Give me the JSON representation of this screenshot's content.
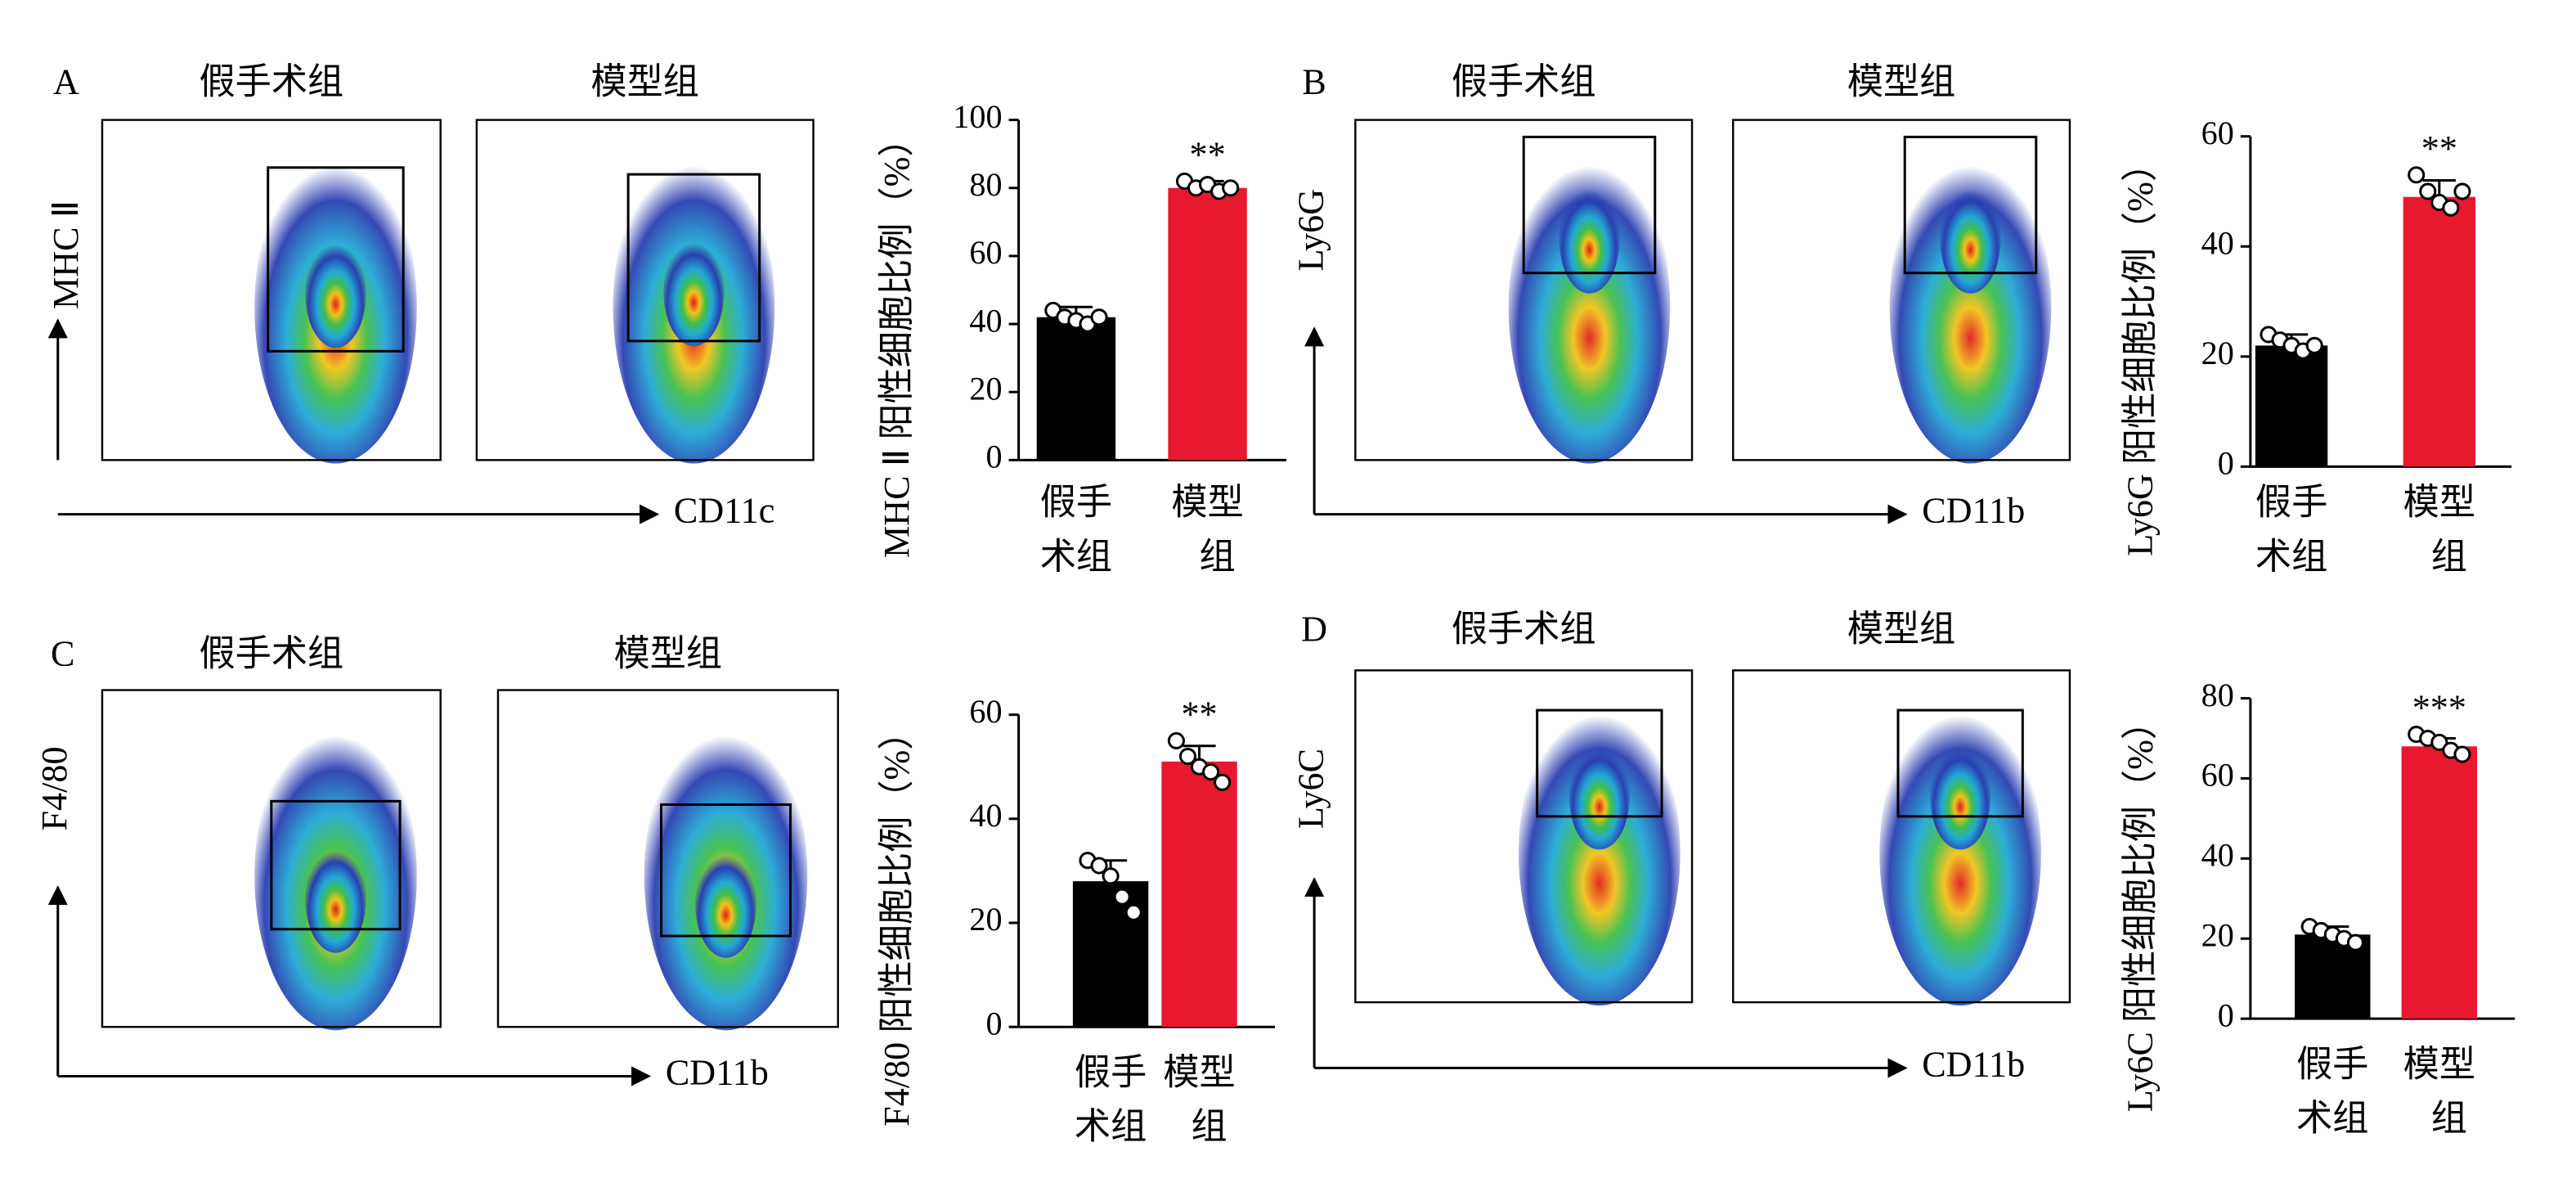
{
  "chart_data": [
    {
      "type": "bar",
      "panel": "A",
      "categories": [
        "假手术组",
        "模型组"
      ],
      "values": [
        42,
        80
      ],
      "errors": [
        3,
        2
      ],
      "points": [
        [
          44,
          42,
          41,
          40,
          42
        ],
        [
          82,
          80,
          81,
          79,
          80
        ]
      ],
      "colors": [
        "#000000",
        "#e8182f"
      ],
      "annotation": "**",
      "ylabel": "MHC Ⅱ 阳性细胞比例（%）",
      "flow_x_label": "CD11c",
      "flow_y_label": "MHC Ⅱ",
      "ylim": [
        0,
        100
      ],
      "yticks": [
        0,
        20,
        40,
        60,
        80,
        100
      ]
    },
    {
      "type": "bar",
      "panel": "B",
      "categories": [
        "假手术组",
        "模型组"
      ],
      "values": [
        22,
        49
      ],
      "errors": [
        2,
        3
      ],
      "points": [
        [
          24,
          23,
          22,
          21,
          22
        ],
        [
          53,
          50,
          48,
          47,
          50
        ]
      ],
      "colors": [
        "#000000",
        "#e8182f"
      ],
      "annotation": "**",
      "ylabel": "Ly6G 阳性细胞比例（%）",
      "flow_x_label": "CD11b",
      "flow_y_label": "Ly6G",
      "ylim": [
        0,
        60
      ],
      "yticks": [
        0,
        20,
        40,
        60
      ]
    },
    {
      "type": "bar",
      "panel": "C",
      "categories": [
        "假手术组",
        "模型组"
      ],
      "values": [
        28,
        51
      ],
      "errors": [
        4,
        3
      ],
      "points": [
        [
          32,
          31,
          29,
          25,
          22
        ],
        [
          55,
          52,
          50,
          49,
          47
        ]
      ],
      "colors": [
        "#000000",
        "#e8182f"
      ],
      "annotation": "**",
      "ylabel": "F4/80 阳性细胞比例（%）",
      "flow_x_label": "CD11b",
      "flow_y_label": "F4/80",
      "ylim": [
        0,
        60
      ],
      "yticks": [
        0,
        20,
        40,
        60
      ]
    },
    {
      "type": "bar",
      "panel": "D",
      "categories": [
        "假手术组",
        "模型组"
      ],
      "values": [
        21,
        68
      ],
      "errors": [
        2,
        2
      ],
      "points": [
        [
          23,
          22,
          21,
          20,
          19
        ],
        [
          71,
          70,
          69,
          67,
          66
        ]
      ],
      "colors": [
        "#000000",
        "#e8182f"
      ],
      "annotation": "***",
      "ylabel": "Ly6C 阳性细胞比例（%）",
      "flow_x_label": "CD11b",
      "flow_y_label": "Ly6C",
      "ylim": [
        0,
        80
      ],
      "yticks": [
        0,
        20,
        40,
        60,
        80
      ]
    }
  ]
}
